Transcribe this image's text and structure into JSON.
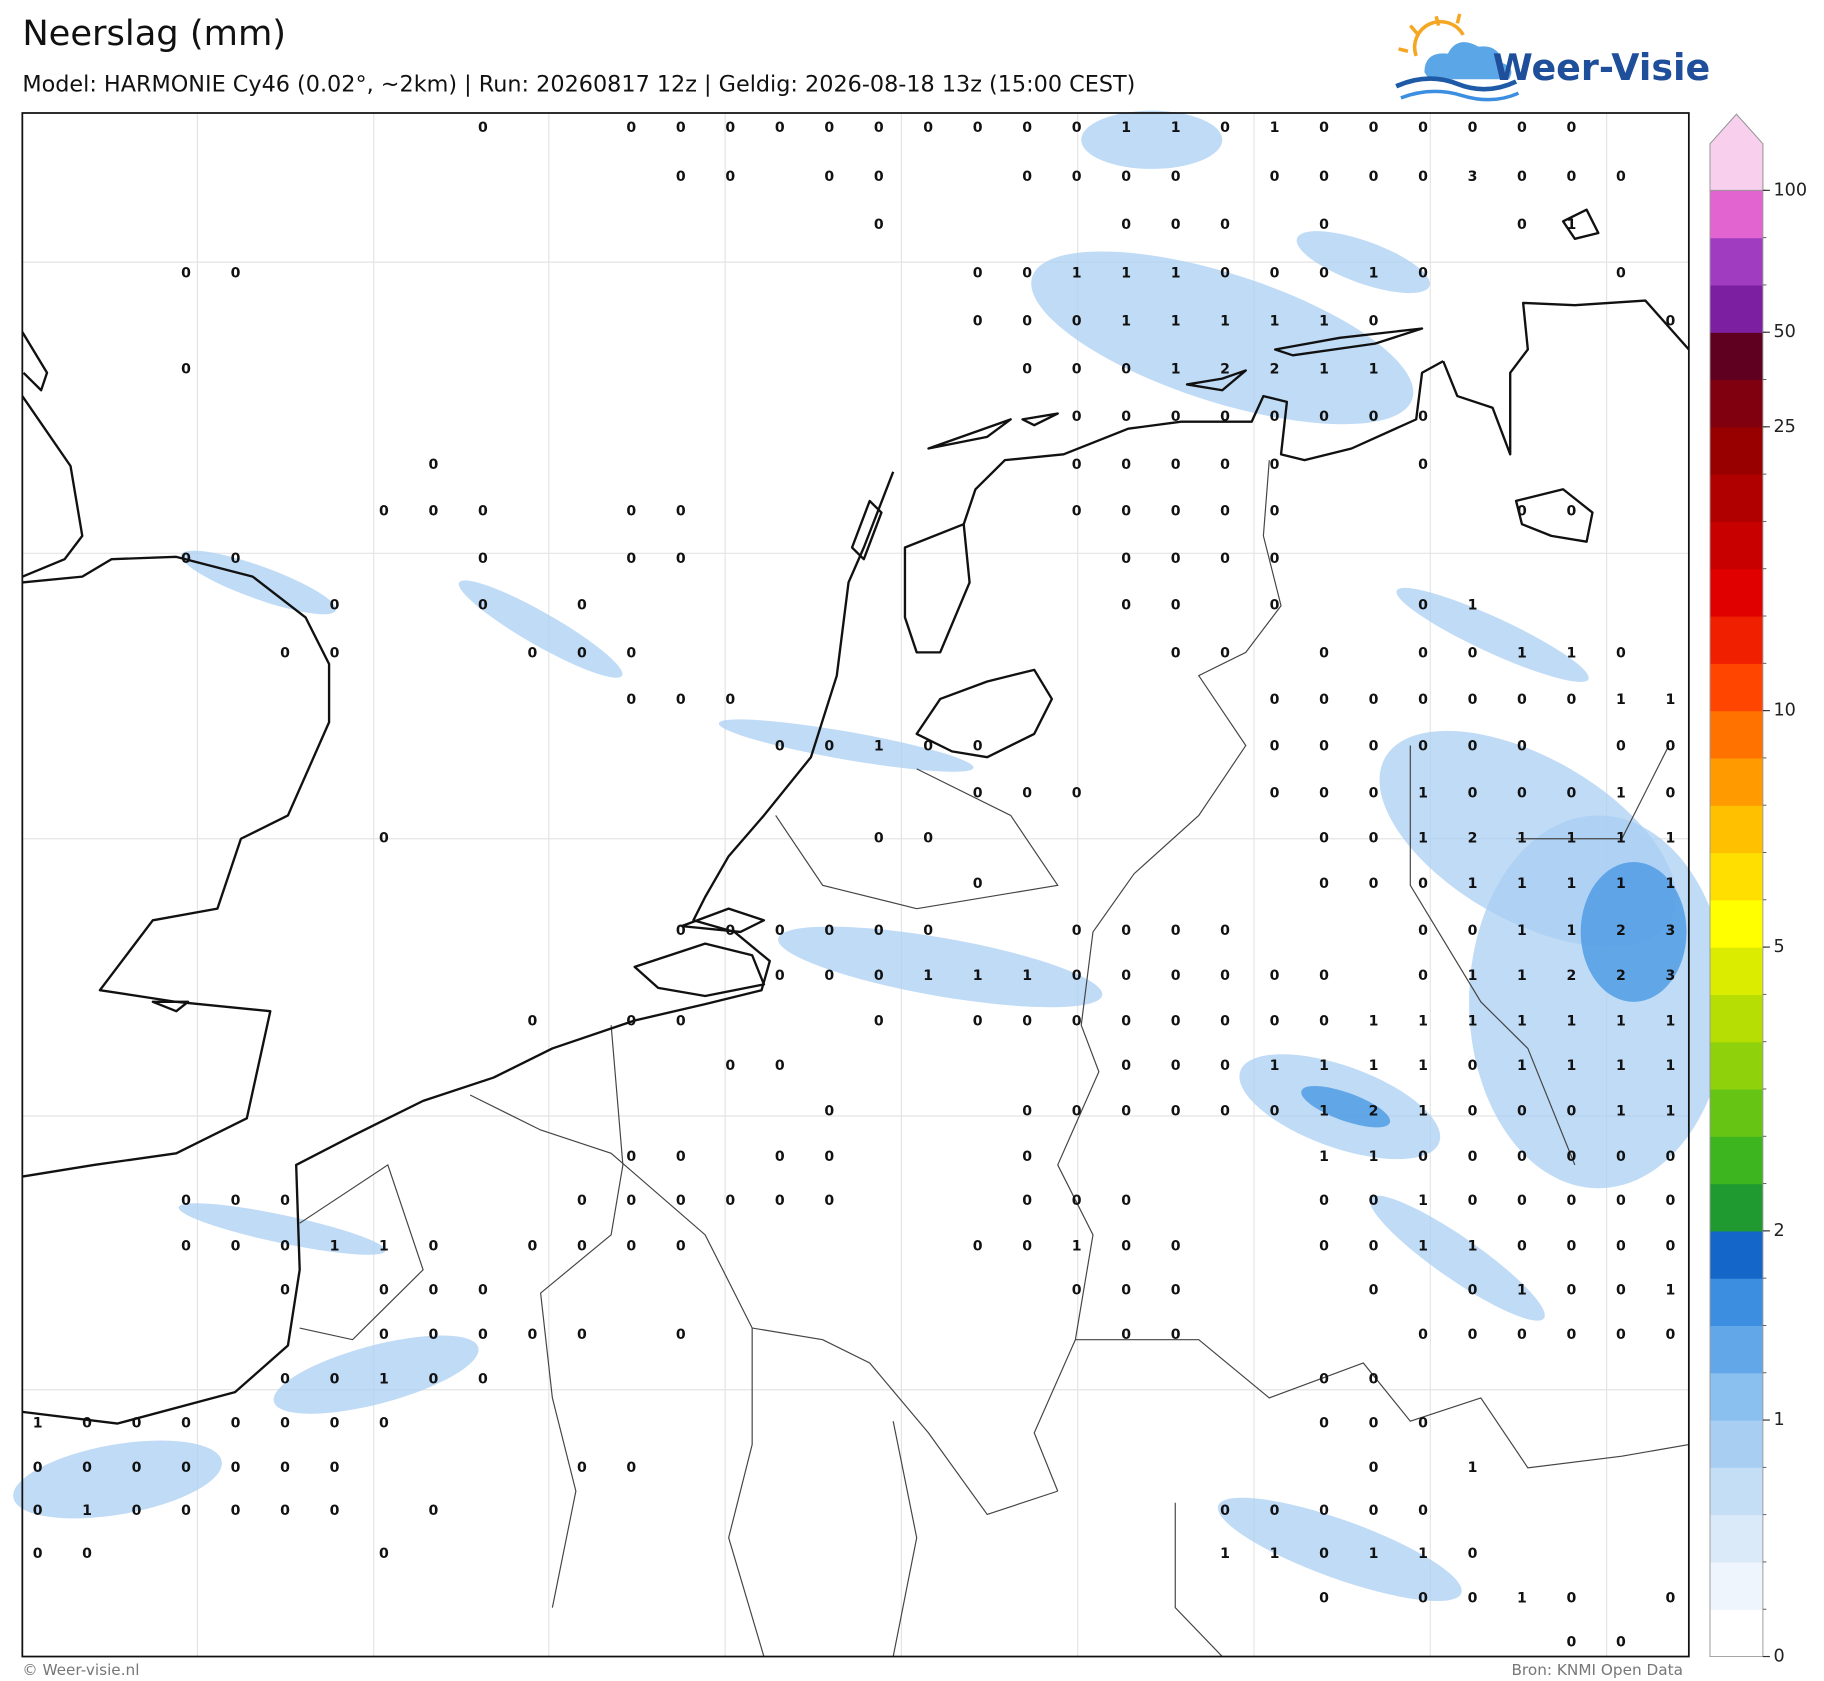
{
  "header": {
    "title": "Neerslag (mm)",
    "subtitle": "Model: HARMONIE Cy46 (0.02°, ~2km)  |  Run: 20260817 12z  |  Geldig: 2026-08-18 13z (15:00 CEST)"
  },
  "logo": {
    "text": "Weer-Visie"
  },
  "map": {
    "values": [
      [
        null,
        null,
        null,
        null,
        null,
        null,
        null,
        null,
        null,
        0,
        null,
        null,
        0,
        0,
        0,
        0,
        0,
        0,
        0,
        0,
        0,
        0,
        1,
        1,
        0,
        1,
        0,
        0,
        0,
        0,
        0,
        0,
        null,
        null
      ],
      [
        null,
        null,
        null,
        null,
        null,
        null,
        null,
        null,
        null,
        null,
        null,
        null,
        null,
        0,
        0,
        null,
        0,
        0,
        null,
        null,
        0,
        0,
        0,
        0,
        null,
        0,
        0,
        0,
        0,
        3,
        0,
        0,
        0,
        null
      ],
      [
        null,
        null,
        null,
        null,
        null,
        null,
        null,
        null,
        null,
        null,
        null,
        null,
        null,
        null,
        null,
        null,
        null,
        0,
        null,
        null,
        null,
        null,
        0,
        0,
        0,
        null,
        0,
        null,
        null,
        null,
        0,
        1,
        null,
        null
      ],
      [
        null,
        null,
        null,
        0,
        0,
        null,
        null,
        null,
        null,
        null,
        null,
        null,
        null,
        null,
        null,
        null,
        null,
        null,
        null,
        0,
        0,
        1,
        1,
        1,
        0,
        0,
        0,
        1,
        0,
        null,
        null,
        null,
        0,
        null
      ],
      [
        null,
        null,
        null,
        null,
        null,
        null,
        null,
        null,
        null,
        null,
        null,
        null,
        null,
        null,
        null,
        null,
        null,
        null,
        null,
        0,
        0,
        0,
        1,
        1,
        1,
        1,
        1,
        0,
        null,
        null,
        null,
        null,
        null,
        0
      ],
      [
        null,
        null,
        null,
        0,
        null,
        null,
        null,
        null,
        null,
        null,
        null,
        null,
        null,
        null,
        null,
        null,
        null,
        null,
        null,
        null,
        0,
        0,
        0,
        1,
        2,
        2,
        1,
        1,
        null,
        null,
        null,
        null,
        null,
        null
      ],
      [
        null,
        null,
        null,
        null,
        null,
        null,
        null,
        null,
        null,
        null,
        null,
        null,
        null,
        null,
        null,
        null,
        null,
        null,
        null,
        null,
        null,
        0,
        0,
        0,
        0,
        0,
        0,
        0,
        0,
        null,
        null,
        null,
        null,
        null
      ],
      [
        null,
        null,
        null,
        null,
        null,
        null,
        null,
        null,
        0,
        null,
        null,
        null,
        null,
        null,
        null,
        null,
        null,
        null,
        null,
        null,
        null,
        0,
        0,
        0,
        0,
        0,
        null,
        null,
        0,
        null,
        null,
        null,
        null,
        null
      ],
      [
        null,
        null,
        null,
        null,
        null,
        null,
        null,
        0,
        0,
        0,
        null,
        null,
        0,
        0,
        null,
        null,
        null,
        null,
        null,
        null,
        null,
        0,
        0,
        0,
        0,
        0,
        null,
        null,
        null,
        null,
        0,
        0,
        null,
        null
      ],
      [
        null,
        null,
        null,
        0,
        0,
        null,
        null,
        null,
        null,
        0,
        null,
        null,
        0,
        0,
        null,
        null,
        null,
        null,
        null,
        null,
        null,
        null,
        0,
        0,
        0,
        0,
        null,
        null,
        null,
        null,
        null,
        null,
        null,
        null
      ],
      [
        null,
        null,
        null,
        null,
        null,
        null,
        0,
        null,
        null,
        0,
        null,
        0,
        null,
        null,
        null,
        null,
        null,
        null,
        null,
        null,
        null,
        null,
        0,
        0,
        null,
        0,
        null,
        null,
        0,
        1,
        null,
        null,
        null,
        null
      ],
      [
        null,
        null,
        null,
        null,
        null,
        0,
        0,
        null,
        null,
        null,
        0,
        0,
        0,
        null,
        null,
        null,
        null,
        null,
        null,
        null,
        null,
        null,
        null,
        0,
        0,
        null,
        0,
        null,
        0,
        0,
        1,
        1,
        0,
        null
      ],
      [
        null,
        null,
        null,
        null,
        null,
        null,
        null,
        null,
        null,
        null,
        null,
        null,
        0,
        0,
        0,
        null,
        null,
        null,
        null,
        null,
        null,
        null,
        null,
        null,
        null,
        0,
        0,
        0,
        0,
        0,
        0,
        0,
        1,
        1
      ],
      [
        null,
        null,
        null,
        null,
        null,
        null,
        null,
        null,
        null,
        null,
        null,
        null,
        null,
        null,
        null,
        0,
        0,
        1,
        0,
        0,
        null,
        null,
        null,
        null,
        null,
        0,
        0,
        0,
        0,
        0,
        0,
        null,
        0,
        0
      ],
      [
        null,
        null,
        null,
        null,
        null,
        null,
        null,
        null,
        null,
        null,
        null,
        null,
        null,
        null,
        null,
        null,
        null,
        null,
        null,
        0,
        0,
        0,
        null,
        null,
        null,
        0,
        0,
        0,
        1,
        0,
        0,
        0,
        1,
        0
      ],
      [
        null,
        null,
        null,
        null,
        null,
        null,
        null,
        0,
        null,
        null,
        null,
        null,
        null,
        null,
        null,
        null,
        null,
        0,
        0,
        null,
        null,
        null,
        null,
        null,
        null,
        null,
        0,
        0,
        1,
        2,
        1,
        1,
        1,
        1
      ],
      [
        null,
        null,
        null,
        null,
        null,
        null,
        null,
        null,
        null,
        null,
        null,
        null,
        null,
        null,
        null,
        null,
        null,
        null,
        null,
        0,
        null,
        null,
        null,
        null,
        null,
        null,
        0,
        0,
        0,
        1,
        1,
        1,
        1,
        1
      ],
      [
        null,
        null,
        null,
        null,
        null,
        null,
        null,
        null,
        null,
        null,
        null,
        null,
        null,
        0,
        0,
        0,
        0,
        0,
        0,
        null,
        null,
        0,
        0,
        0,
        0,
        null,
        null,
        null,
        0,
        0,
        1,
        1,
        2,
        3
      ],
      [
        null,
        null,
        null,
        null,
        null,
        null,
        null,
        null,
        null,
        null,
        null,
        null,
        null,
        null,
        null,
        0,
        0,
        0,
        1,
        1,
        1,
        0,
        0,
        0,
        0,
        0,
        0,
        null,
        0,
        1,
        1,
        2,
        2,
        3
      ],
      [
        null,
        null,
        null,
        null,
        null,
        null,
        null,
        null,
        null,
        null,
        0,
        null,
        0,
        0,
        null,
        null,
        null,
        0,
        null,
        0,
        0,
        0,
        0,
        0,
        0,
        0,
        0,
        1,
        1,
        1,
        1,
        1,
        1,
        1
      ],
      [
        null,
        null,
        null,
        null,
        null,
        null,
        null,
        null,
        null,
        null,
        null,
        null,
        null,
        null,
        0,
        0,
        null,
        null,
        null,
        null,
        null,
        null,
        0,
        0,
        0,
        1,
        1,
        1,
        1,
        0,
        1,
        1,
        1,
        1
      ],
      [
        null,
        null,
        null,
        null,
        null,
        null,
        null,
        null,
        null,
        null,
        null,
        null,
        null,
        null,
        null,
        null,
        0,
        null,
        null,
        null,
        0,
        0,
        0,
        0,
        0,
        0,
        1,
        2,
        1,
        0,
        0,
        0,
        1,
        1
      ],
      [
        null,
        null,
        null,
        null,
        null,
        null,
        null,
        null,
        null,
        null,
        null,
        null,
        0,
        0,
        null,
        0,
        0,
        null,
        null,
        null,
        0,
        null,
        null,
        null,
        null,
        null,
        1,
        1,
        0,
        0,
        0,
        0,
        0,
        0
      ],
      [
        null,
        null,
        null,
        0,
        0,
        0,
        null,
        null,
        null,
        null,
        null,
        0,
        0,
        0,
        0,
        0,
        0,
        null,
        null,
        null,
        0,
        0,
        0,
        null,
        null,
        null,
        0,
        0,
        1,
        0,
        0,
        0,
        0,
        0
      ],
      [
        null,
        null,
        null,
        0,
        0,
        0,
        1,
        1,
        0,
        null,
        0,
        0,
        0,
        0,
        null,
        null,
        null,
        null,
        null,
        0,
        0,
        1,
        0,
        0,
        null,
        null,
        0,
        0,
        1,
        1,
        0,
        0,
        0,
        0
      ],
      [
        null,
        null,
        null,
        null,
        null,
        0,
        null,
        0,
        0,
        0,
        null,
        null,
        null,
        null,
        null,
        null,
        null,
        null,
        null,
        null,
        null,
        0,
        0,
        0,
        null,
        null,
        null,
        0,
        null,
        0,
        1,
        0,
        0,
        1
      ],
      [
        null,
        null,
        null,
        null,
        null,
        null,
        null,
        0,
        0,
        0,
        0,
        0,
        null,
        0,
        null,
        null,
        null,
        null,
        null,
        null,
        null,
        null,
        0,
        0,
        null,
        null,
        null,
        null,
        0,
        0,
        0,
        0,
        0,
        0
      ],
      [
        null,
        null,
        null,
        null,
        null,
        0,
        0,
        1,
        0,
        0,
        null,
        null,
        null,
        null,
        null,
        null,
        null,
        null,
        null,
        null,
        null,
        null,
        null,
        null,
        null,
        null,
        0,
        0,
        null,
        null,
        null,
        null,
        null,
        null
      ],
      [
        1,
        0,
        0,
        0,
        0,
        0,
        0,
        0,
        null,
        null,
        null,
        null,
        null,
        null,
        null,
        null,
        null,
        null,
        null,
        null,
        null,
        null,
        null,
        null,
        null,
        null,
        0,
        0,
        0,
        null,
        null,
        null,
        null,
        null
      ],
      [
        0,
        0,
        0,
        0,
        0,
        0,
        0,
        null,
        null,
        null,
        null,
        0,
        0,
        null,
        null,
        null,
        null,
        null,
        null,
        null,
        null,
        null,
        null,
        null,
        null,
        null,
        null,
        0,
        null,
        1,
        null,
        null,
        null,
        null
      ],
      [
        0,
        1,
        0,
        0,
        0,
        0,
        0,
        null,
        0,
        null,
        null,
        null,
        null,
        null,
        null,
        null,
        null,
        null,
        null,
        null,
        null,
        null,
        null,
        null,
        0,
        0,
        0,
        0,
        0,
        null,
        null,
        null,
        null,
        null
      ],
      [
        0,
        0,
        null,
        null,
        null,
        null,
        null,
        0,
        null,
        null,
        null,
        null,
        null,
        null,
        null,
        null,
        null,
        null,
        null,
        null,
        null,
        null,
        null,
        null,
        1,
        1,
        0,
        1,
        1,
        0,
        null,
        null,
        null,
        null
      ],
      [
        null,
        null,
        null,
        null,
        null,
        null,
        null,
        null,
        null,
        null,
        null,
        null,
        null,
        null,
        null,
        null,
        null,
        null,
        null,
        null,
        null,
        null,
        null,
        null,
        null,
        null,
        0,
        null,
        0,
        0,
        1,
        0,
        null,
        0
      ],
      [
        null,
        null,
        null,
        null,
        null,
        null,
        null,
        null,
        null,
        null,
        null,
        null,
        null,
        null,
        null,
        null,
        null,
        null,
        null,
        null,
        null,
        null,
        null,
        null,
        null,
        null,
        null,
        null,
        null,
        null,
        null,
        0,
        0,
        null
      ]
    ]
  },
  "colorbar": {
    "levels": [
      0,
      0.1,
      0.3,
      0.5,
      0.8,
      1,
      1.2,
      1.5,
      1.8,
      2,
      2.5,
      3,
      3.5,
      4,
      4.5,
      5,
      6,
      7,
      8,
      9,
      10,
      12,
      14,
      16,
      18,
      20,
      25,
      35,
      50,
      65,
      80,
      100
    ],
    "colors": [
      "#ffffff",
      "#eef5fc",
      "#dbeaf9",
      "#c4def6",
      "#a8cff2",
      "#8ac0ef",
      "#62a8e8",
      "#3c8fe0",
      "#1467c8",
      "#1f9a30",
      "#3db51e",
      "#66c414",
      "#8fd10a",
      "#b6de05",
      "#dcec00",
      "#ffff00",
      "#ffdf00",
      "#ffc000",
      "#ff9a00",
      "#ff7200",
      "#ff4500",
      "#f01f00",
      "#e00000",
      "#c80000",
      "#b00000",
      "#980000",
      "#800010",
      "#600020",
      "#7c1fa0",
      "#a03cc0",
      "#e264d0"
    ],
    "extend_color": "#f8d0ee",
    "ticks": [
      0,
      1,
      2,
      5,
      10,
      25,
      50,
      100
    ]
  },
  "footer": {
    "credit": "© Weer-visie.nl",
    "source": "Bron: KNMI Open Data"
  }
}
